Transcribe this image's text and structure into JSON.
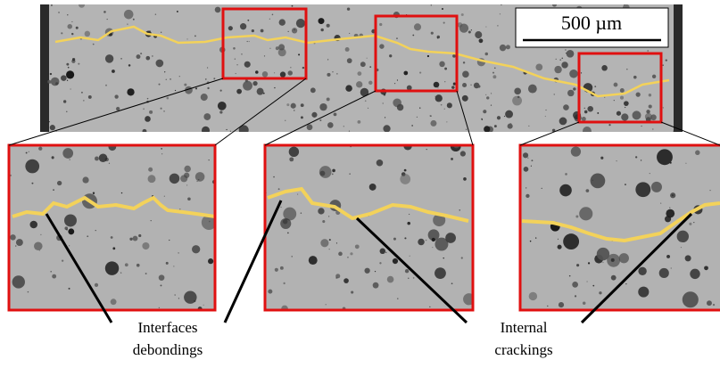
{
  "scale_bar": {
    "label": "500 µm"
  },
  "annotations": [
    {
      "lines": [
        "Interfaces",
        "debondings"
      ]
    },
    {
      "lines": [
        "Internal",
        "crackings"
      ]
    }
  ]
}
